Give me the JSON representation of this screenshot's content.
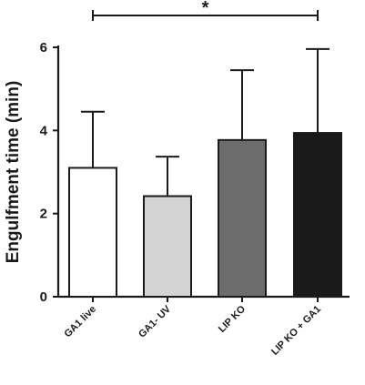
{
  "chart_data": {
    "type": "bar",
    "title": "",
    "xlabel": "",
    "ylabel": "Engulfment time (min)",
    "ylim": [
      0,
      6
    ],
    "yticks": [
      0,
      2,
      4,
      6
    ],
    "categories": [
      "GA1 live",
      "GA1- UV",
      "LIP KO",
      "LIP KO + GA1"
    ],
    "values": [
      3.1,
      2.42,
      3.77,
      3.94
    ],
    "error": [
      1.35,
      0.95,
      1.68,
      2.02
    ],
    "colors": [
      "#ffffff",
      "#d4d4d4",
      "#6c6c6c",
      "#1a1a1a"
    ],
    "significance": {
      "label": "*",
      "from": "GA1 live",
      "to": "LIP KO + GA1"
    },
    "grid": false,
    "legend": "none"
  }
}
